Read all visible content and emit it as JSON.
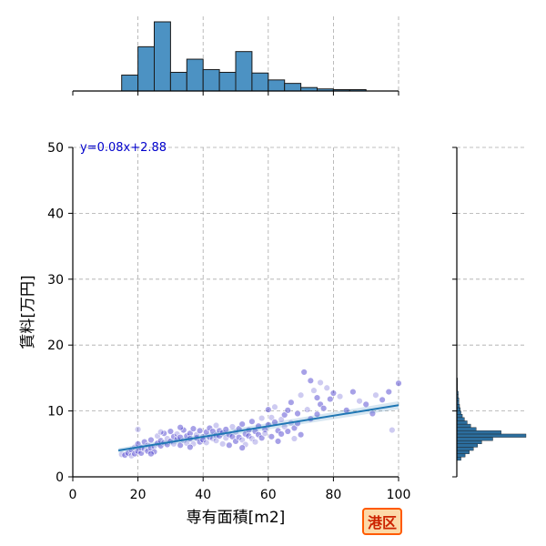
{
  "chart_data": {
    "type": "scatter",
    "xlabel": "専有面積[m2]",
    "ylabel": "賃料[万円]",
    "xlim": [
      0,
      100
    ],
    "ylim": [
      0,
      50
    ],
    "xticks": [
      0,
      20,
      40,
      60,
      80,
      100
    ],
    "yticks": [
      0,
      10,
      20,
      30,
      40,
      50
    ],
    "grid": true,
    "regression": {
      "slope": 0.08,
      "intercept": 2.88,
      "x_range": [
        14,
        100
      ],
      "label": "y=0.08x+2.88",
      "color": "#1f77b4"
    },
    "scatter_color": "#3b2fc9",
    "points": [
      [
        15,
        3.4
      ],
      [
        16,
        3.3
      ],
      [
        17,
        3.6
      ],
      [
        18,
        3.2
      ],
      [
        18,
        4.1
      ],
      [
        19,
        3.5
      ],
      [
        19,
        4.5
      ],
      [
        20,
        3.9
      ],
      [
        20,
        5.0
      ],
      [
        20,
        7.2
      ],
      [
        21,
        3.6
      ],
      [
        21,
        4.4
      ],
      [
        22,
        4.2
      ],
      [
        22,
        5.3
      ],
      [
        23,
        3.9
      ],
      [
        23,
        4.8
      ],
      [
        24,
        4.4
      ],
      [
        24,
        5.6
      ],
      [
        25,
        4.6
      ],
      [
        25,
        3.8
      ],
      [
        26,
        5.1
      ],
      [
        26,
        6.2
      ],
      [
        27,
        4.7
      ],
      [
        27,
        5.5
      ],
      [
        28,
        5.2
      ],
      [
        28,
        6.6
      ],
      [
        29,
        4.9
      ],
      [
        29,
        5.8
      ],
      [
        30,
        5.4
      ],
      [
        30,
        6.9
      ],
      [
        31,
        5.0
      ],
      [
        31,
        6.1
      ],
      [
        32,
        5.7
      ],
      [
        32,
        6.5
      ],
      [
        33,
        4.8
      ],
      [
        33,
        6.0
      ],
      [
        34,
        5.5
      ],
      [
        34,
        7.1
      ],
      [
        35,
        6.2
      ],
      [
        35,
        5.1
      ],
      [
        36,
        6.6
      ],
      [
        36,
        5.8
      ],
      [
        37,
        5.0
      ],
      [
        37,
        7.3
      ],
      [
        38,
        5.9
      ],
      [
        38,
        6.4
      ],
      [
        39,
        5.3
      ],
      [
        39,
        7.0
      ],
      [
        40,
        6.1
      ],
      [
        40,
        5.6
      ],
      [
        41,
        6.8
      ],
      [
        41,
        5.2
      ],
      [
        42,
        7.4
      ],
      [
        42,
        6.0
      ],
      [
        43,
        5.8
      ],
      [
        43,
        6.9
      ],
      [
        44,
        6.3
      ],
      [
        44,
        5.5
      ],
      [
        45,
        7.0
      ],
      [
        45,
        6.2
      ],
      [
        46,
        5.0
      ],
      [
        46,
        6.7
      ],
      [
        47,
        7.2
      ],
      [
        47,
        5.9
      ],
      [
        48,
        6.4
      ],
      [
        48,
        4.8
      ],
      [
        49,
        7.6
      ],
      [
        49,
        6.1
      ],
      [
        50,
        5.4
      ],
      [
        50,
        6.8
      ],
      [
        51,
        7.3
      ],
      [
        51,
        6.0
      ],
      [
        52,
        5.6
      ],
      [
        52,
        8.0
      ],
      [
        53,
        6.5
      ],
      [
        53,
        4.9
      ],
      [
        54,
        7.1
      ],
      [
        54,
        6.2
      ],
      [
        55,
        5.8
      ],
      [
        55,
        8.4
      ],
      [
        56,
        6.9
      ],
      [
        56,
        5.3
      ],
      [
        57,
        7.7
      ],
      [
        57,
        6.4
      ],
      [
        58,
        8.9
      ],
      [
        58,
        5.9
      ],
      [
        59,
        7.2
      ],
      [
        59,
        6.6
      ],
      [
        60,
        10.2
      ],
      [
        60,
        7.9
      ],
      [
        61,
        9.0
      ],
      [
        61,
        6.1
      ],
      [
        62,
        8.3
      ],
      [
        62,
        10.6
      ],
      [
        63,
        7.0
      ],
      [
        63,
        5.4
      ],
      [
        64,
        8.7
      ],
      [
        64,
        6.5
      ],
      [
        65,
        9.4
      ],
      [
        65,
        7.6
      ],
      [
        66,
        10.1
      ],
      [
        66,
        6.9
      ],
      [
        67,
        8.2
      ],
      [
        67,
        11.3
      ],
      [
        68,
        7.4
      ],
      [
        68,
        5.8
      ],
      [
        69,
        9.6
      ],
      [
        69,
        8.1
      ],
      [
        70,
        12.4
      ],
      [
        70,
        6.4
      ],
      [
        71,
        15.9
      ],
      [
        72,
        10.2
      ],
      [
        73,
        14.6
      ],
      [
        73,
        8.8
      ],
      [
        74,
        13.1
      ],
      [
        75,
        9.5
      ],
      [
        75,
        12.0
      ],
      [
        76,
        14.3
      ],
      [
        76,
        11.0
      ],
      [
        77,
        10.4
      ],
      [
        78,
        13.5
      ],
      [
        79,
        11.8
      ],
      [
        80,
        12.7
      ],
      [
        82,
        12.2
      ],
      [
        84,
        10.1
      ],
      [
        86,
        12.9
      ],
      [
        88,
        11.5
      ],
      [
        90,
        11.0
      ],
      [
        92,
        9.6
      ],
      [
        93,
        12.4
      ],
      [
        95,
        11.7
      ],
      [
        97,
        12.9
      ],
      [
        98,
        7.1
      ],
      [
        100,
        14.2
      ],
      [
        24,
        3.5
      ],
      [
        27,
        6.8
      ],
      [
        33,
        7.5
      ],
      [
        36,
        4.5
      ],
      [
        44,
        7.8
      ],
      [
        52,
        4.4
      ]
    ],
    "top_histogram": {
      "bin_edges": [
        0,
        5,
        10,
        15,
        20,
        25,
        30,
        35,
        40,
        45,
        50,
        55,
        60,
        65,
        70,
        75,
        80,
        85,
        90,
        95,
        100
      ],
      "counts": [
        0,
        0,
        0,
        23,
        64,
        100,
        27,
        46,
        31,
        27,
        57,
        26,
        16,
        11,
        5,
        3,
        2,
        2,
        0,
        0
      ],
      "color": "#4c92c3"
    },
    "right_histogram": {
      "bin_edges": [
        2.5,
        3,
        3.5,
        4,
        4.5,
        5,
        5.5,
        6,
        6.5,
        7,
        7.5,
        8,
        8.5,
        9,
        9.5,
        10,
        10.5,
        11,
        11.5,
        12,
        12.5,
        13,
        13.5,
        14,
        14.5,
        15
      ],
      "counts": [
        6,
        12,
        18,
        24,
        30,
        36,
        52,
        100,
        64,
        28,
        20,
        15,
        11,
        8,
        6,
        5,
        4,
        3,
        3,
        2,
        2,
        1,
        1,
        1,
        1
      ],
      "color": "#2c6e9e"
    }
  },
  "badge": {
    "text": "港区"
  }
}
